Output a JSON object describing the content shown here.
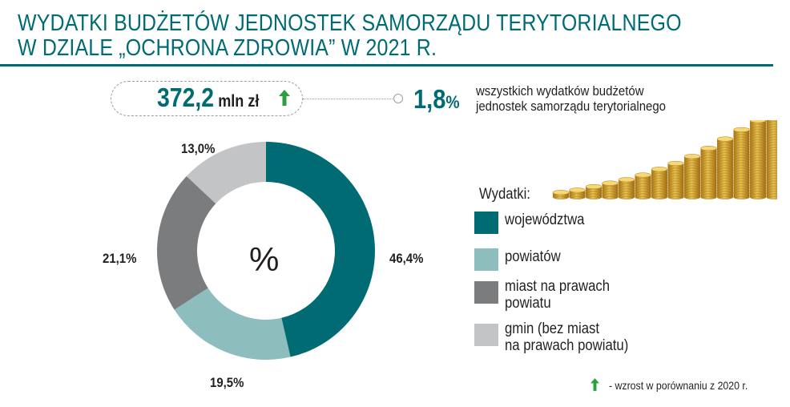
{
  "title": {
    "line1": "WYDATKI BUDŻETÓW JEDNOSTEK SAMORZĄDU TERYTORIALNEGO",
    "line2": "W DZIALE „OCHRONA ZDROWIA” W 2021 R."
  },
  "summary": {
    "total_value": "372,2",
    "total_unit": "mln zł",
    "trend": "up",
    "share_value": "1,8",
    "share_unit": "%",
    "share_text_line1": "wszystkich wydatków budżetów",
    "share_text_line2": "jednostek samorządu terytorialnego"
  },
  "chart_data": {
    "type": "pie",
    "center_label": "%",
    "legend_title": "Wydatki:",
    "slices": [
      {
        "label": "województwa",
        "value": 46.4,
        "display": "46,4%",
        "color": "#006b73"
      },
      {
        "label": "powiatów",
        "value": 19.5,
        "display": "19,5%",
        "color": "#8dbebd"
      },
      {
        "label": "miast na prawach powiatu",
        "value": 21.1,
        "display": "21,1%",
        "color": "#7b7c7e"
      },
      {
        "label": "gmin (bez miast na prawach powiatu)",
        "value": 13.0,
        "display": "13,0%",
        "color": "#c3c4c6"
      }
    ],
    "legend_lines": [
      [
        "województwa"
      ],
      [
        "powiatów"
      ],
      [
        "miast na prawach",
        "powiatu"
      ],
      [
        "gmin (bez miast",
        "na prawach powiatu)"
      ]
    ]
  },
  "footnote": {
    "text": "- wzrost w porównaniu z 2020 r.",
    "arrow_color": "#2e9e44"
  },
  "colors": {
    "accent": "#006b73",
    "arrow": "#2e9e44",
    "coin": "#d9a520"
  },
  "image": {
    "description_icon": "coins-stack-icon"
  }
}
